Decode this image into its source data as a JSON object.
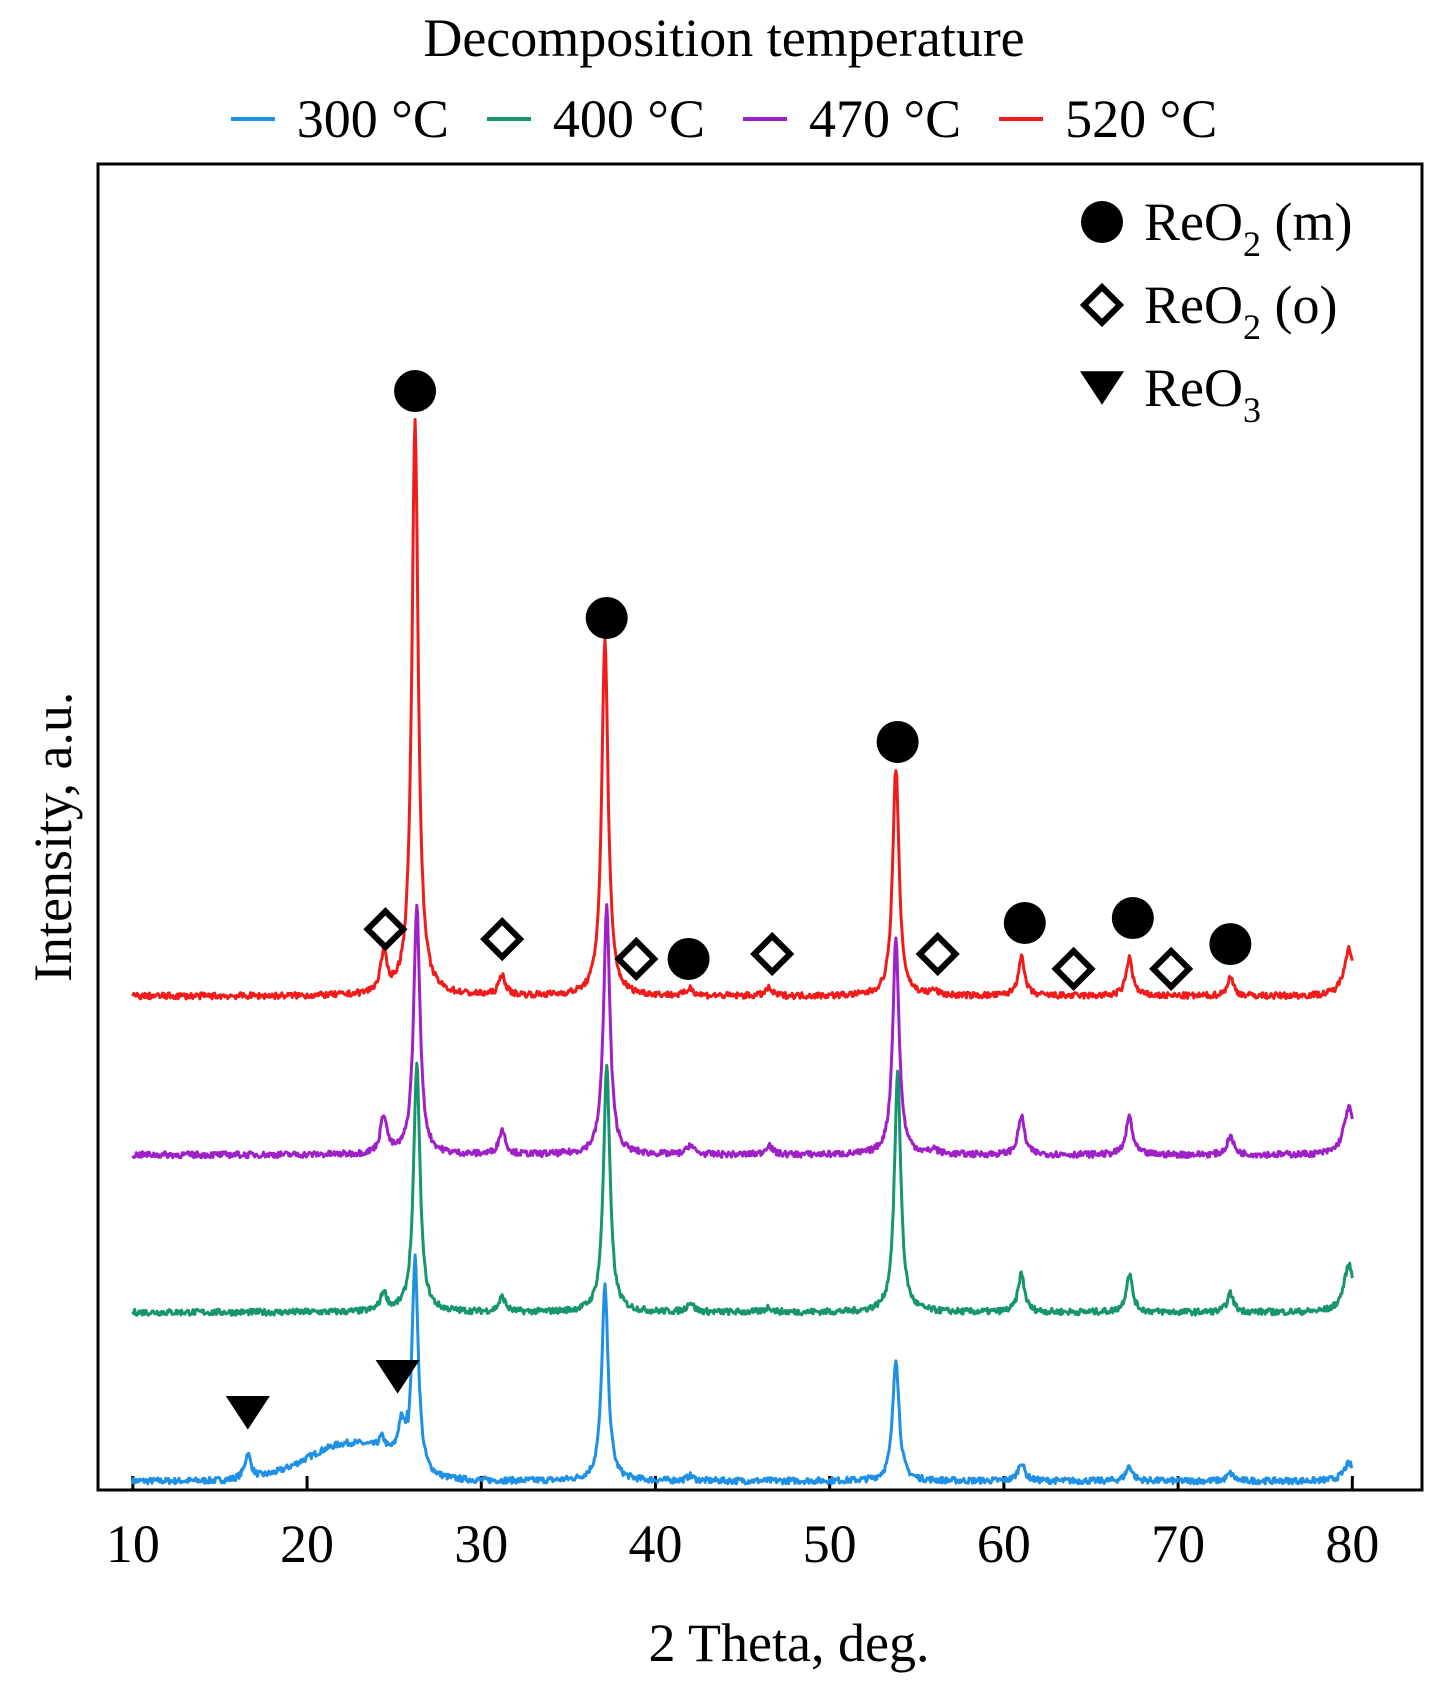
{
  "chart_data": {
    "type": "line",
    "title": "Decomposition temperature",
    "xlabel": "2 Theta, deg.",
    "ylabel": "Intensity, a.u.",
    "xlim": [
      8,
      84
    ],
    "x_ticks": [
      10,
      20,
      30,
      40,
      50,
      60,
      70,
      80
    ],
    "ylim": [
      0,
      100
    ],
    "y_ticks_shown": false,
    "grid": false,
    "legend_position": "top",
    "series": [
      {
        "name": "300 °C",
        "color": "#1e90e6",
        "baseline": 0,
        "peaks": [
          [
            16.6,
            2.0
          ],
          [
            24.3,
            1.0
          ],
          [
            25.4,
            2.5
          ],
          [
            26.2,
            17.5
          ],
          [
            37.1,
            15.7
          ],
          [
            42.0,
            0.4
          ],
          [
            53.8,
            9.9
          ],
          [
            61.0,
            1.5
          ],
          [
            67.2,
            1.2
          ],
          [
            73.0,
            0.6
          ],
          [
            79.8,
            1.4
          ]
        ],
        "hump": [
          22.5,
          3.0,
          2.5
        ]
      },
      {
        "name": "400 °C",
        "color": "#16956e",
        "baseline": 13.6,
        "peaks": [
          [
            24.4,
            1.5
          ],
          [
            26.3,
            20.0
          ],
          [
            31.2,
            1.2
          ],
          [
            37.2,
            20.0
          ],
          [
            42.0,
            0.8
          ],
          [
            46.5,
            0.4
          ],
          [
            53.9,
            19.3
          ],
          [
            61.0,
            3.1
          ],
          [
            67.2,
            3.1
          ],
          [
            73.0,
            1.5
          ],
          [
            79.8,
            3.8
          ]
        ]
      },
      {
        "name": "470 °C",
        "color": "#a020c8",
        "baseline": 26.3,
        "peaks": [
          [
            24.4,
            3.1
          ],
          [
            26.3,
            20.0
          ],
          [
            31.2,
            2.0
          ],
          [
            37.2,
            20.0
          ],
          [
            42.0,
            0.8
          ],
          [
            46.5,
            0.8
          ],
          [
            53.8,
            17.4
          ],
          [
            56.0,
            0.4
          ],
          [
            61.0,
            3.1
          ],
          [
            67.2,
            3.1
          ],
          [
            73.0,
            1.5
          ],
          [
            79.8,
            3.8
          ]
        ]
      },
      {
        "name": "520 °C",
        "color": "#f01c1c",
        "baseline": 39.1,
        "peaks": [
          [
            24.4,
            3.1
          ],
          [
            26.2,
            46.4
          ],
          [
            31.2,
            1.6
          ],
          [
            37.1,
            28.8
          ],
          [
            42.0,
            0.6
          ],
          [
            46.5,
            0.6
          ],
          [
            53.8,
            18.4
          ],
          [
            56.0,
            0.4
          ],
          [
            61.0,
            3.1
          ],
          [
            67.2,
            3.1
          ],
          [
            73.0,
            1.5
          ],
          [
            79.8,
            3.8
          ]
        ]
      }
    ],
    "markers": [
      {
        "phase": "ReO2 (m)",
        "shape": "circle",
        "x": 26.2,
        "y": 87.9
      },
      {
        "phase": "ReO2 (m)",
        "shape": "circle",
        "x": 37.2,
        "y": 69.6
      },
      {
        "phase": "ReO2 (m)",
        "shape": "circle",
        "x": 53.9,
        "y": 59.6
      },
      {
        "phase": "ReO2 (m)",
        "shape": "circle",
        "x": 41.9,
        "y": 42.1
      },
      {
        "phase": "ReO2 (m)",
        "shape": "circle",
        "x": 61.2,
        "y": 45.0
      },
      {
        "phase": "ReO2 (m)",
        "shape": "circle",
        "x": 67.4,
        "y": 45.4
      },
      {
        "phase": "ReO2 (m)",
        "shape": "circle",
        "x": 73.0,
        "y": 43.3
      },
      {
        "phase": "ReO2 (o)",
        "shape": "diamond",
        "x": 24.5,
        "y": 44.5
      },
      {
        "phase": "ReO2 (o)",
        "shape": "diamond",
        "x": 31.2,
        "y": 43.7
      },
      {
        "phase": "ReO2 (o)",
        "shape": "diamond",
        "x": 38.9,
        "y": 42.1
      },
      {
        "phase": "ReO2 (o)",
        "shape": "diamond",
        "x": 46.7,
        "y": 42.5
      },
      {
        "phase": "ReO2 (o)",
        "shape": "diamond",
        "x": 56.2,
        "y": 42.5
      },
      {
        "phase": "ReO2 (o)",
        "shape": "diamond",
        "x": 64.0,
        "y": 41.3
      },
      {
        "phase": "ReO2 (o)",
        "shape": "diamond",
        "x": 69.6,
        "y": 41.3
      },
      {
        "phase": "ReO3",
        "shape": "triangle",
        "x": 16.6,
        "y": 5.5
      },
      {
        "phase": "ReO3",
        "shape": "triangle",
        "x": 25.2,
        "y": 8.4
      }
    ],
    "marker_legend": [
      {
        "shape": "circle",
        "label": "ReO",
        "sub": "2",
        "suffix": " (m)"
      },
      {
        "shape": "diamond",
        "label": "ReO",
        "sub": "2",
        "suffix": " (o)"
      },
      {
        "shape": "triangle",
        "label": "ReO",
        "sub": "3",
        "suffix": ""
      }
    ]
  }
}
